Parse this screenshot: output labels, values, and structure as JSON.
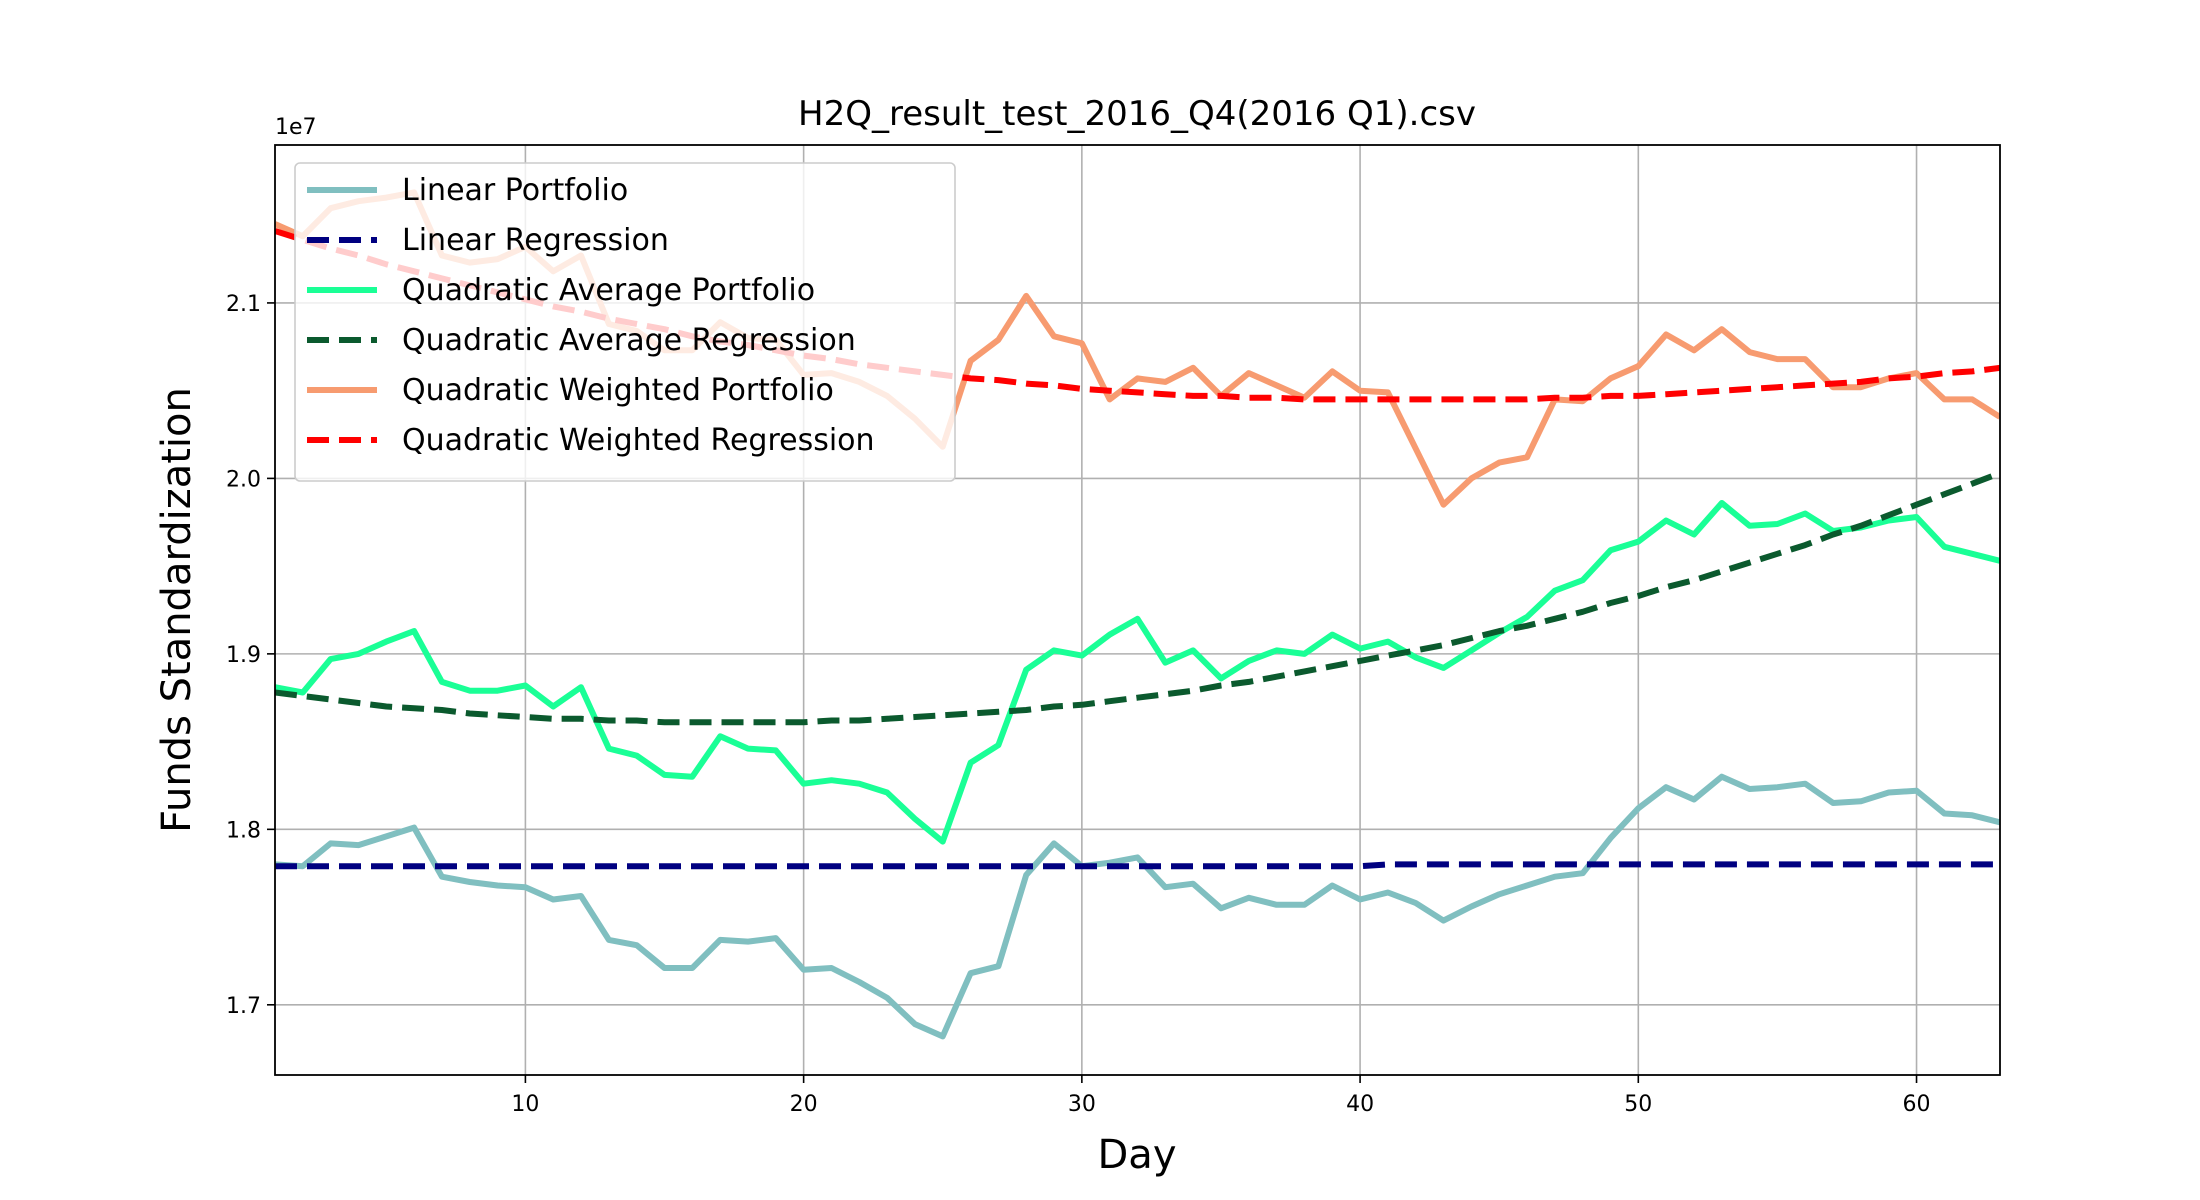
{
  "chart_data": {
    "type": "line",
    "title": "H2Q_result_test_2016_Q4(2016 Q1).csv",
    "xlabel": "Day",
    "ylabel": "Funds Standardization",
    "y_offset_label": "1e7",
    "y_multiplier": 10000000,
    "xlim": [
      1,
      63
    ],
    "ylim": [
      1.66,
      2.19
    ],
    "x_ticks": [
      10,
      20,
      30,
      40,
      50,
      60
    ],
    "y_ticks": [
      1.7,
      1.8,
      1.9,
      2.0,
      2.1
    ],
    "y_tick_labels": [
      "1.7",
      "1.8",
      "1.9",
      "2.0",
      "2.1"
    ],
    "grid": true,
    "legend_position": "upper-left",
    "x": [
      1,
      2,
      3,
      4,
      5,
      6,
      7,
      8,
      9,
      10,
      11,
      12,
      13,
      14,
      15,
      16,
      17,
      18,
      19,
      20,
      21,
      22,
      23,
      24,
      25,
      26,
      27,
      28,
      29,
      30,
      31,
      32,
      33,
      34,
      35,
      36,
      37,
      38,
      39,
      40,
      41,
      42,
      43,
      44,
      45,
      46,
      47,
      48,
      49,
      50,
      51,
      52,
      53,
      54,
      55,
      56,
      57,
      58,
      59,
      60,
      61,
      62,
      63
    ],
    "series": [
      {
        "name": "Linear Portfolio",
        "color": "#80bfc0",
        "dash": "solid",
        "values": [
          1.78,
          1.779,
          1.792,
          1.791,
          1.796,
          1.801,
          1.773,
          1.77,
          1.768,
          1.767,
          1.76,
          1.762,
          1.737,
          1.734,
          1.721,
          1.721,
          1.737,
          1.736,
          1.738,
          1.72,
          1.721,
          1.713,
          1.704,
          1.689,
          1.682,
          1.718,
          1.722,
          1.774,
          1.792,
          1.779,
          1.781,
          1.784,
          1.767,
          1.769,
          1.755,
          1.761,
          1.757,
          1.757,
          1.768,
          1.76,
          1.764,
          1.758,
          1.748,
          1.756,
          1.763,
          1.768,
          1.773,
          1.775,
          1.795,
          1.812,
          1.824,
          1.817,
          1.83,
          1.823,
          1.824,
          1.826,
          1.815,
          1.816,
          1.821,
          1.822,
          1.809,
          1.808,
          1.804
        ]
      },
      {
        "name": "Linear Regression",
        "color": "#000080",
        "dash": "dashed",
        "values": [
          1.779,
          1.779,
          1.779,
          1.779,
          1.779,
          1.779,
          1.779,
          1.779,
          1.779,
          1.779,
          1.779,
          1.779,
          1.779,
          1.779,
          1.779,
          1.779,
          1.779,
          1.779,
          1.779,
          1.779,
          1.779,
          1.779,
          1.779,
          1.779,
          1.779,
          1.779,
          1.779,
          1.779,
          1.779,
          1.779,
          1.779,
          1.779,
          1.779,
          1.779,
          1.779,
          1.779,
          1.779,
          1.779,
          1.779,
          1.779,
          1.78,
          1.78,
          1.78,
          1.78,
          1.78,
          1.78,
          1.78,
          1.78,
          1.78,
          1.78,
          1.78,
          1.78,
          1.78,
          1.78,
          1.78,
          1.78,
          1.78,
          1.78,
          1.78,
          1.78,
          1.78,
          1.78,
          1.78
        ]
      },
      {
        "name": "Quadratic Average Portfolio",
        "color": "#1aff96",
        "dash": "solid",
        "values": [
          1.881,
          1.878,
          1.897,
          1.9,
          1.907,
          1.913,
          1.884,
          1.879,
          1.879,
          1.882,
          1.87,
          1.881,
          1.846,
          1.842,
          1.831,
          1.83,
          1.853,
          1.846,
          1.845,
          1.826,
          1.828,
          1.826,
          1.821,
          1.806,
          1.793,
          1.838,
          1.848,
          1.891,
          1.902,
          1.899,
          1.911,
          1.92,
          1.895,
          1.902,
          1.886,
          1.896,
          1.902,
          1.9,
          1.911,
          1.903,
          1.907,
          1.898,
          1.892,
          1.902,
          1.912,
          1.921,
          1.936,
          1.942,
          1.959,
          1.964,
          1.976,
          1.968,
          1.986,
          1.973,
          1.974,
          1.98,
          1.97,
          1.972,
          1.976,
          1.978,
          1.961,
          1.957,
          1.953
        ]
      },
      {
        "name": "Quadratic Average Regression",
        "color": "#0b5a2e",
        "dash": "dashed",
        "values": [
          1.878,
          1.876,
          1.874,
          1.872,
          1.87,
          1.869,
          1.868,
          1.866,
          1.865,
          1.864,
          1.863,
          1.863,
          1.862,
          1.862,
          1.861,
          1.861,
          1.861,
          1.861,
          1.861,
          1.861,
          1.862,
          1.862,
          1.863,
          1.864,
          1.865,
          1.866,
          1.867,
          1.868,
          1.87,
          1.871,
          1.873,
          1.875,
          1.877,
          1.879,
          1.882,
          1.884,
          1.887,
          1.89,
          1.893,
          1.896,
          1.899,
          1.902,
          1.905,
          1.909,
          1.913,
          1.916,
          1.92,
          1.924,
          1.929,
          1.933,
          1.938,
          1.942,
          1.947,
          1.952,
          1.957,
          1.962,
          1.968,
          1.973,
          1.979,
          1.985,
          1.991,
          1.997,
          2.003
        ]
      },
      {
        "name": "Quadratic Weighted Portfolio",
        "color": "#f79b70",
        "dash": "solid",
        "values": [
          2.145,
          2.138,
          2.154,
          2.158,
          2.16,
          2.163,
          2.127,
          2.123,
          2.125,
          2.132,
          2.118,
          2.127,
          2.088,
          2.084,
          2.073,
          2.073,
          2.089,
          2.08,
          2.079,
          2.059,
          2.06,
          2.055,
          2.047,
          2.034,
          2.018,
          2.067,
          2.079,
          2.104,
          2.081,
          2.077,
          2.045,
          2.057,
          2.055,
          2.063,
          2.047,
          2.06,
          2.053,
          2.046,
          2.061,
          2.05,
          2.049,
          2.017,
          1.985,
          2.0,
          2.009,
          2.012,
          2.045,
          2.044,
          2.057,
          2.064,
          2.082,
          2.073,
          2.085,
          2.072,
          2.068,
          2.068,
          2.052,
          2.052,
          2.057,
          2.06,
          2.045,
          2.045,
          2.035
        ]
      },
      {
        "name": "Quadratic Weighted Regression",
        "color": "#ff0000",
        "dash": "dashed",
        "values": [
          2.141,
          2.136,
          2.131,
          2.127,
          2.122,
          2.118,
          2.114,
          2.11,
          2.106,
          2.102,
          2.098,
          2.095,
          2.091,
          2.088,
          2.085,
          2.081,
          2.078,
          2.076,
          2.073,
          2.07,
          2.068,
          2.065,
          2.063,
          2.061,
          2.059,
          2.057,
          2.056,
          2.054,
          2.053,
          2.051,
          2.05,
          2.049,
          2.048,
          2.047,
          2.047,
          2.046,
          2.046,
          2.045,
          2.045,
          2.045,
          2.045,
          2.045,
          2.045,
          2.045,
          2.045,
          2.045,
          2.046,
          2.046,
          2.047,
          2.047,
          2.048,
          2.049,
          2.05,
          2.051,
          2.052,
          2.053,
          2.054,
          2.055,
          2.057,
          2.058,
          2.06,
          2.061,
          2.063
        ]
      }
    ]
  }
}
